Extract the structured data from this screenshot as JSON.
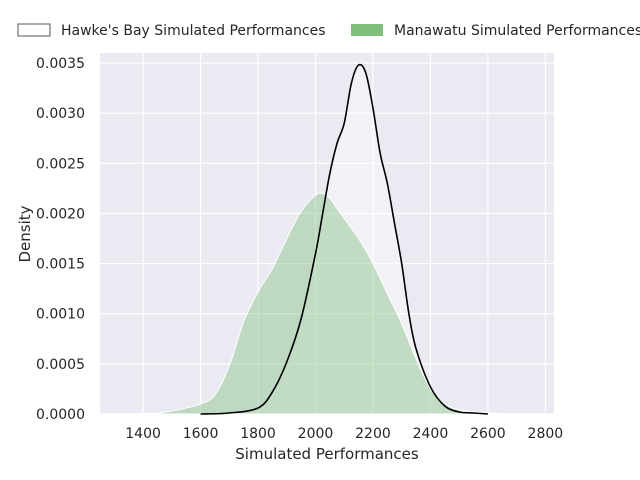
{
  "chart_data": {
    "type": "area",
    "title": "",
    "xlabel": "Simulated Performances",
    "ylabel": "Density",
    "xlim": [
      1250,
      2830
    ],
    "ylim": [
      0,
      0.0036
    ],
    "x_ticks": [
      1400,
      1600,
      1800,
      2000,
      2200,
      2400,
      2600,
      2800
    ],
    "x_tick_labels": [
      "1400",
      "1600",
      "1800",
      "2000",
      "2200",
      "2400",
      "2600",
      "2800"
    ],
    "y_ticks": [
      0,
      0.0005,
      0.001,
      0.0015,
      0.002,
      0.0025,
      0.003,
      0.0035
    ],
    "y_tick_labels": [
      "0.0000",
      "0.0005",
      "0.0010",
      "0.0015",
      "0.0020",
      "0.0025",
      "0.0030",
      "0.0035"
    ],
    "grid": true,
    "legend_position": "top",
    "series": [
      {
        "name": "Hawke's Bay Simulated Performances",
        "style": "line",
        "color": "#000000",
        "x": [
          1600,
          1700,
          1800,
          1850,
          1900,
          1950,
          2000,
          2025,
          2050,
          2075,
          2100,
          2125,
          2150,
          2175,
          2200,
          2225,
          2250,
          2275,
          2300,
          2325,
          2350,
          2400,
          2450,
          2500,
          2550,
          2600
        ],
        "y": [
          0,
          1e-05,
          6e-05,
          0.00022,
          0.00052,
          0.00095,
          0.0016,
          0.002,
          0.0024,
          0.0027,
          0.0029,
          0.0033,
          0.00348,
          0.0034,
          0.00305,
          0.0026,
          0.0023,
          0.0019,
          0.0015,
          0.001,
          0.00065,
          0.00027,
          8e-05,
          2e-05,
          1e-05,
          0
        ]
      },
      {
        "name": "Manawatu Simulated Performances",
        "style": "area",
        "color": "#7dbf7b",
        "x": [
          1340,
          1400,
          1450,
          1500,
          1550,
          1600,
          1650,
          1700,
          1750,
          1800,
          1850,
          1900,
          1950,
          2000,
          2025,
          2050,
          2075,
          2100,
          2150,
          2200,
          2250,
          2300,
          2350,
          2400,
          2450,
          2500,
          2550,
          2600,
          2650,
          2700,
          2750
        ],
        "y": [
          0,
          5e-06,
          1e-05,
          3e-05,
          6e-05,
          0.0001,
          0.00019,
          0.00048,
          0.00092,
          0.00122,
          0.00145,
          0.00175,
          0.00202,
          0.00218,
          0.0022,
          0.00215,
          0.00205,
          0.00195,
          0.00175,
          0.0015,
          0.0012,
          0.0009,
          0.00055,
          0.00025,
          0.0001,
          4e-05,
          2e-05,
          1e-05,
          5e-06,
          2e-06,
          0
        ]
      }
    ]
  },
  "colors": {
    "axes_bg": "#eaeaf2",
    "grid": "#ffffff",
    "hawkes_line": "#000000",
    "hawkes_fill": "#ffffff",
    "manawatu_fill": "#7dbf7b"
  }
}
